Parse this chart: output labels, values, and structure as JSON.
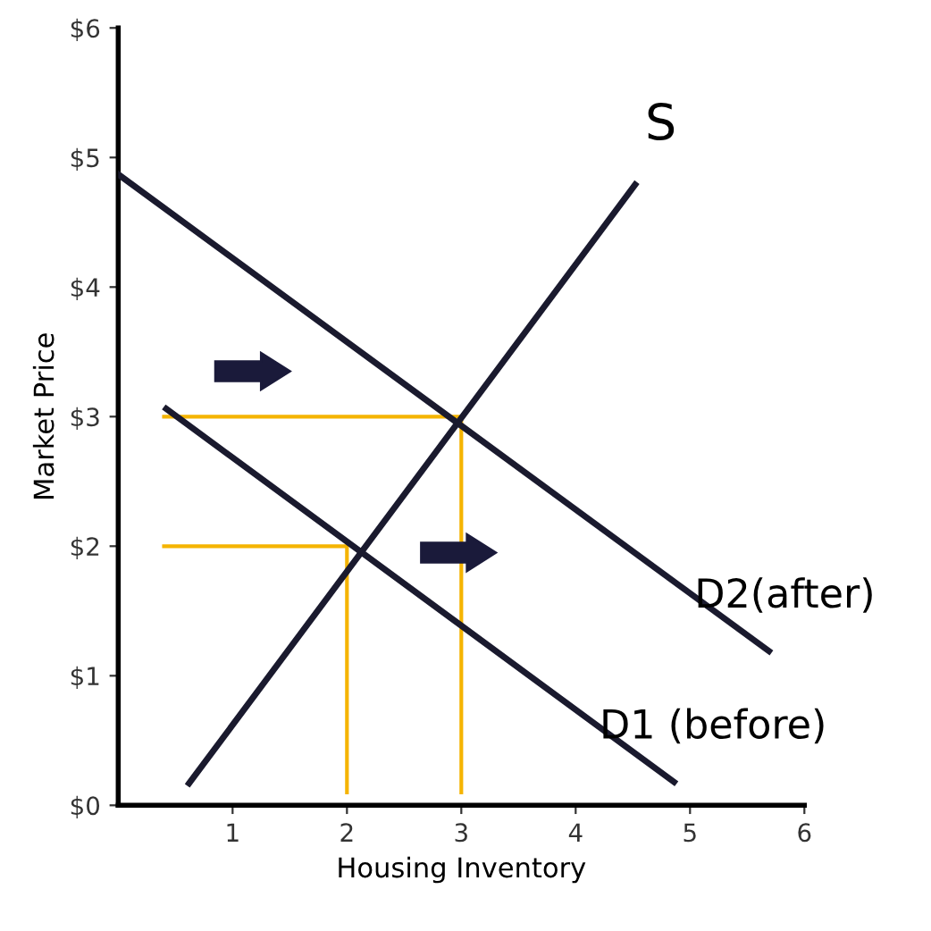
{
  "chart_data": {
    "type": "line",
    "xlabel": "Housing Inventory",
    "ylabel": "Market Price",
    "xlim": [
      0,
      6
    ],
    "ylim": [
      0,
      6
    ],
    "xticks": [
      1,
      2,
      3,
      4,
      5,
      6
    ],
    "yticks": [
      {
        "value": 0,
        "label": "$0"
      },
      {
        "value": 1,
        "label": "$1"
      },
      {
        "value": 2,
        "label": "$2"
      },
      {
        "value": 3,
        "label": "$3"
      },
      {
        "value": 4,
        "label": "$4"
      },
      {
        "value": 5,
        "label": "$5"
      },
      {
        "value": 6,
        "label": "$6"
      }
    ],
    "grid": false,
    "legend": false,
    "marker": "none",
    "line_style": "solid",
    "series": [
      {
        "name": "S",
        "color": "#1a1a2e",
        "x": [
          0.62,
          4.52
        ],
        "values": [
          0.17,
          4.79
        ]
      },
      {
        "name": "D1 (before)",
        "color": "#1a1a2e",
        "x": [
          0.42,
          4.86
        ],
        "values": [
          3.06,
          0.18
        ]
      },
      {
        "name": "D2(after)",
        "color": "#1a1a2e",
        "x": [
          0,
          5.69
        ],
        "values": [
          4.87,
          1.19
        ]
      },
      {
        "color": "#f5b400",
        "x": [
          0.4,
          3,
          3
        ],
        "values": [
          3,
          3,
          0.1
        ]
      },
      {
        "color": "#f5b400",
        "x": [
          0.4,
          2,
          2
        ],
        "values": [
          2,
          2,
          0.1
        ]
      }
    ]
  }
}
